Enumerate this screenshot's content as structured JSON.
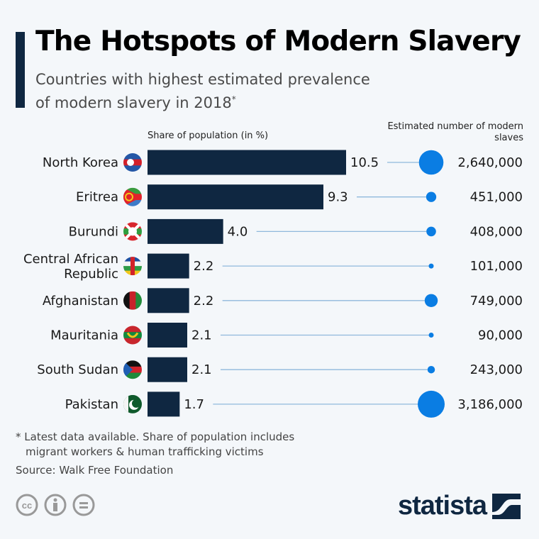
{
  "header": {
    "title": "The Hotspots of Modern Slavery",
    "subtitle_line1": "Countries with highest estimated prevalence",
    "subtitle_line2": "of modern slavery in 2018",
    "subtitle_mark": "*"
  },
  "chart_data": {
    "type": "bar",
    "title": "The Hotspots of Modern Slavery",
    "subtitle": "Countries with highest estimated prevalence of modern slavery in 2018*",
    "xlabel": "Share of population (in %)",
    "secondary_label": "Estimated number of modern slaves",
    "categories": [
      "North Korea",
      "Eritrea",
      "Burundi",
      "Central African Republic",
      "Afghanistan",
      "Mauritania",
      "South Sudan",
      "Pakistan"
    ],
    "category_lines": [
      [
        "North Korea"
      ],
      [
        "Eritrea"
      ],
      [
        "Burundi"
      ],
      [
        "Central African",
        "Republic"
      ],
      [
        "Afghanistan"
      ],
      [
        "Mauritania"
      ],
      [
        "South Sudan"
      ],
      [
        "Pakistan"
      ]
    ],
    "series": [
      {
        "name": "Share of population (in %)",
        "type": "bar",
        "values": [
          10.5,
          9.3,
          4.0,
          2.2,
          2.2,
          2.1,
          2.1,
          1.7
        ],
        "labels": [
          "10.5",
          "9.3",
          "4.0",
          "2.2",
          "2.2",
          "2.1",
          "2.1",
          "1.7"
        ]
      },
      {
        "name": "Estimated number of modern slaves",
        "type": "bubble",
        "values": [
          2640000,
          451000,
          408000,
          101000,
          749000,
          90000,
          243000,
          3186000
        ],
        "labels": [
          "2,640,000",
          "451,000",
          "408,000",
          "101,000",
          "749,000",
          "90,000",
          "243,000",
          "3,186,000"
        ]
      }
    ],
    "flags": [
      "north-korea",
      "eritrea",
      "burundi",
      "central-african-republic",
      "afghanistan",
      "mauritania",
      "south-sudan",
      "pakistan"
    ],
    "xlim": [
      0,
      10.5
    ],
    "grid": false,
    "legend": "none",
    "colors": {
      "bar": "#0f2741",
      "bubble": "#0a7de3",
      "connector": "#8fb8dc"
    }
  },
  "footer": {
    "note_line1": "* Latest data available. Share of population includes",
    "note_line2": "migrant workers & human trafficking victims",
    "source": "Source: Walk Free Foundation",
    "license_icons": [
      "cc-icon",
      "by-icon",
      "nd-icon"
    ],
    "brand": "statista"
  }
}
